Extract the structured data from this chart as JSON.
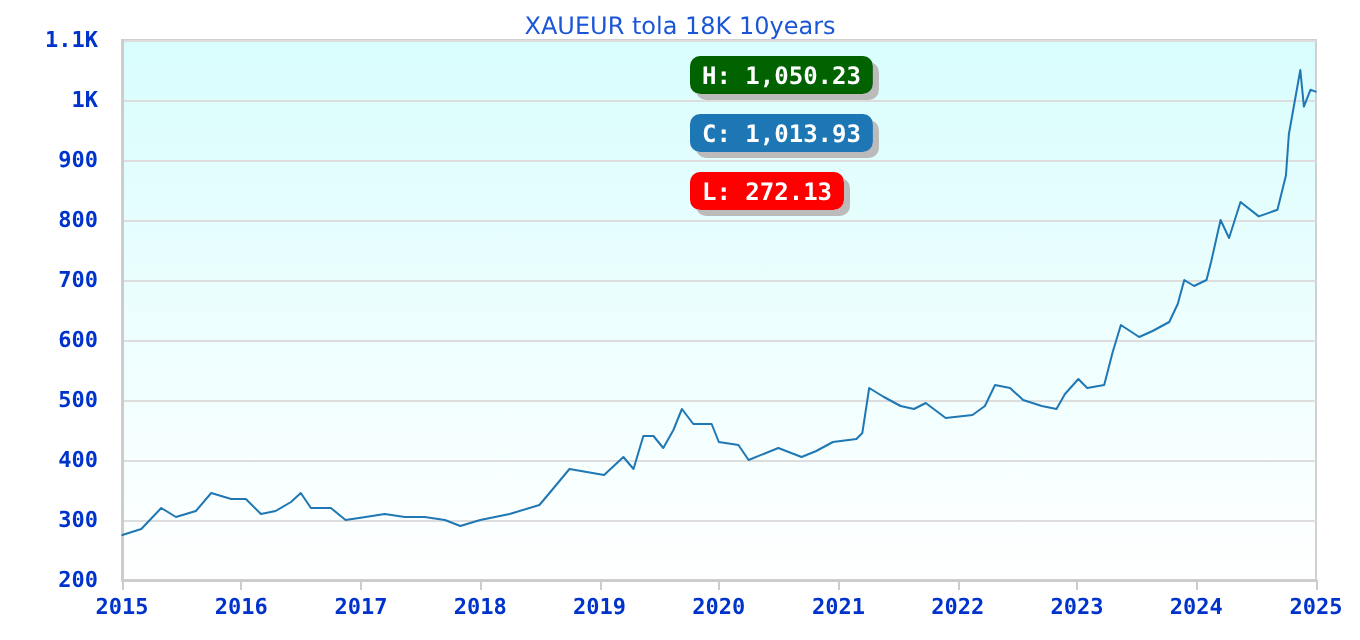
{
  "chart_data": {
    "type": "line",
    "title": "XAUEUR tola 18K 10years",
    "x": [
      "2015-01-02",
      "2015-03-01",
      "2015-05-01",
      "2015-06-15",
      "2015-08-15",
      "2015-10-01",
      "2015-12-01",
      "2016-01-15",
      "2016-03-01",
      "2016-04-15",
      "2016-06-01",
      "2016-07-01",
      "2016-08-01",
      "2016-10-01",
      "2016-11-15",
      "2017-01-15",
      "2017-03-15",
      "2017-05-15",
      "2017-07-15",
      "2017-09-15",
      "2017-11-01",
      "2018-01-01",
      "2018-04-01",
      "2018-07-01",
      "2018-08-01",
      "2018-10-01",
      "2019-01-15",
      "2019-03-15",
      "2019-04-15",
      "2019-05-15",
      "2019-06-15",
      "2019-07-15",
      "2019-08-15",
      "2019-09-10",
      "2019-10-15",
      "2019-12-10",
      "2020-01-01",
      "2020-03-01",
      "2020-04-01",
      "2020-07-01",
      "2020-09-10",
      "2020-10-25",
      "2020-12-15",
      "2021-02-25",
      "2021-03-15",
      "2021-04-05",
      "2021-05-20",
      "2021-07-10",
      "2021-08-20",
      "2021-09-25",
      "2021-11-25",
      "2022-02-15",
      "2022-03-25",
      "2022-04-25",
      "2022-06-10",
      "2022-07-20",
      "2022-09-15",
      "2022-10-30",
      "2022-11-25",
      "2023-01-05",
      "2023-02-01",
      "2023-03-25",
      "2023-04-20",
      "2023-05-15",
      "2023-07-10",
      "2023-08-20",
      "2023-10-10",
      "2023-11-05",
      "2023-11-25",
      "2023-12-25",
      "2024-02-01",
      "2024-02-15",
      "2024-03-15",
      "2024-04-10",
      "2024-05-15",
      "2024-07-10",
      "2024-09-05",
      "2024-10-01",
      "2024-10-10",
      "2024-11-14",
      "2024-11-25",
      "2024-12-15",
      "2024-12-31"
    ],
    "series": [
      {
        "color": "#1f77b4",
        "values": [
          275,
          285,
          320,
          305,
          315,
          345,
          335,
          335,
          310,
          315,
          330,
          345,
          320,
          320,
          300,
          305,
          310,
          305,
          305,
          300,
          290,
          300,
          310,
          325,
          345,
          385,
          375,
          405,
          385,
          440,
          440,
          420,
          450,
          485,
          460,
          460,
          430,
          425,
          400,
          420,
          405,
          415,
          430,
          435,
          445,
          520,
          505,
          490,
          485,
          495,
          470,
          475,
          490,
          525,
          520,
          500,
          490,
          485,
          510,
          535,
          520,
          525,
          580,
          625,
          605,
          615,
          630,
          660,
          700,
          690,
          700,
          730,
          800,
          770,
          830,
          806,
          817,
          874,
          943,
          1050,
          989,
          1017,
          1014
        ]
      }
    ],
    "xlim": [
      "2015-01-01",
      "2025-01-01"
    ],
    "xticks": [
      "2015",
      "2016",
      "2017",
      "2018",
      "2019",
      "2020",
      "2021",
      "2022",
      "2023",
      "2024",
      "2025"
    ],
    "ylim": [
      200,
      1100
    ],
    "yticks": [
      200,
      300,
      400,
      500,
      600,
      700,
      800,
      900,
      {
        "value": 1000,
        "label": "1K"
      },
      {
        "value": 1100,
        "label": "1.1K"
      }
    ],
    "annotations": [
      "H: 1,050.23",
      "C: 1,013.93",
      "L: 272.13"
    ],
    "grid": "y",
    "marker": "none",
    "line_style": "solid"
  }
}
